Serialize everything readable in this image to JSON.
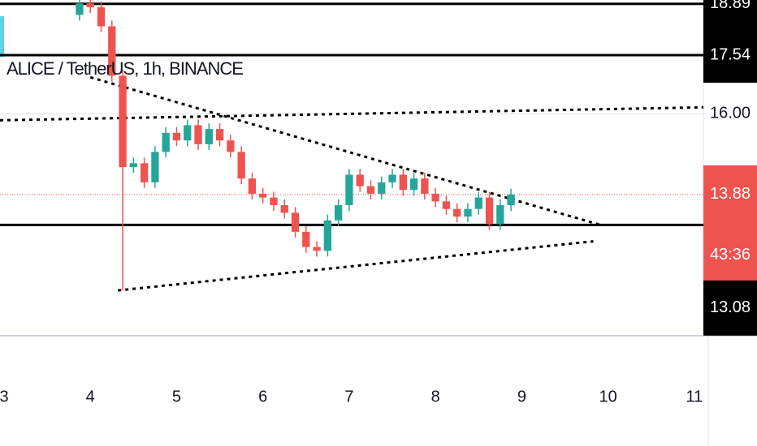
{
  "chart_data": {
    "type": "candlestick",
    "title": "ALICE / TetherUS, 1h, BINANCE",
    "x": [
      3.875,
      4.0,
      4.125,
      4.25,
      4.375,
      4.5,
      4.625,
      4.75,
      4.875,
      5.0,
      5.125,
      5.25,
      5.375,
      5.5,
      5.625,
      5.75,
      5.875,
      6.0,
      6.125,
      6.25,
      6.375,
      6.5,
      6.625,
      6.75,
      6.875,
      7.0,
      7.125,
      7.25,
      7.375,
      7.5,
      7.625,
      7.75,
      7.875,
      8.0,
      8.125,
      8.25,
      8.375,
      8.5,
      8.625,
      8.75,
      8.875
    ],
    "open": [
      18.6,
      18.9,
      18.8,
      18.3,
      17.0,
      14.6,
      14.7,
      14.2,
      15.0,
      15.5,
      15.3,
      15.7,
      15.2,
      15.6,
      15.3,
      15.0,
      14.3,
      13.9,
      13.8,
      13.6,
      13.4,
      12.9,
      12.5,
      12.4,
      13.2,
      13.6,
      14.4,
      14.1,
      13.9,
      14.2,
      14.4,
      14.0,
      14.3,
      13.9,
      13.7,
      13.5,
      13.3,
      13.5,
      13.8,
      13.1,
      13.6
    ],
    "high": [
      19.05,
      19.05,
      18.95,
      18.45,
      17.15,
      14.85,
      14.85,
      15.15,
      15.65,
      15.65,
      15.85,
      15.85,
      15.75,
      15.75,
      15.45,
      15.15,
      14.45,
      14.05,
      13.95,
      13.75,
      13.55,
      13.05,
      12.65,
      13.35,
      13.75,
      14.55,
      14.55,
      14.25,
      14.35,
      14.55,
      14.55,
      14.45,
      14.45,
      14.05,
      13.85,
      13.65,
      13.65,
      13.95,
      13.95,
      13.75,
      14.03
    ],
    "low": [
      18.45,
      18.65,
      18.15,
      16.85,
      11.36,
      14.45,
      14.05,
      14.05,
      14.85,
      15.15,
      15.15,
      15.05,
      15.05,
      15.15,
      14.85,
      14.15,
      13.75,
      13.65,
      13.45,
      13.25,
      12.75,
      12.35,
      12.25,
      12.25,
      13.05,
      13.45,
      13.95,
      13.75,
      13.75,
      14.05,
      13.85,
      13.85,
      13.75,
      13.55,
      13.35,
      13.15,
      13.15,
      13.35,
      12.95,
      12.95,
      13.45
    ],
    "close": [
      18.9,
      18.8,
      18.3,
      17.0,
      14.6,
      14.7,
      14.2,
      15.0,
      15.5,
      15.3,
      15.7,
      15.2,
      15.6,
      15.3,
      15.0,
      14.3,
      13.9,
      13.8,
      13.6,
      13.4,
      12.9,
      12.5,
      12.4,
      13.2,
      13.6,
      14.4,
      14.1,
      13.9,
      14.2,
      14.4,
      14.0,
      14.3,
      13.9,
      13.7,
      13.5,
      13.3,
      13.5,
      13.8,
      13.1,
      13.6,
      13.88
    ],
    "up_color": "#26a69a",
    "down_color": "#ef5350",
    "xlim": [
      2.953,
      11.105
    ],
    "ylim": [
      10.17,
      18.99
    ],
    "xticks": [
      3,
      4,
      5,
      6,
      7,
      8,
      9,
      10,
      11
    ],
    "yticks": [
      {
        "value": 16.0,
        "label": "16.00"
      }
    ],
    "horizontal_lines": [
      {
        "value": 18.89,
        "label": "18.89"
      },
      {
        "value": 17.54,
        "label": "17.54"
      },
      {
        "value": 13.08,
        "label": "13.08"
      }
    ],
    "current_price": {
      "value": 13.88,
      "label": "13.88",
      "countdown": "43:36",
      "color": "#ef5350"
    },
    "trend_lines": [
      {
        "x": [
          2.953,
          11.105
        ],
        "y": [
          15.83,
          16.17
        ]
      },
      {
        "x": [
          4.0,
          9.93
        ],
        "y": [
          16.96,
          13.07
        ]
      },
      {
        "x": [
          4.32,
          9.83
        ],
        "y": [
          11.36,
          12.65
        ]
      }
    ]
  }
}
